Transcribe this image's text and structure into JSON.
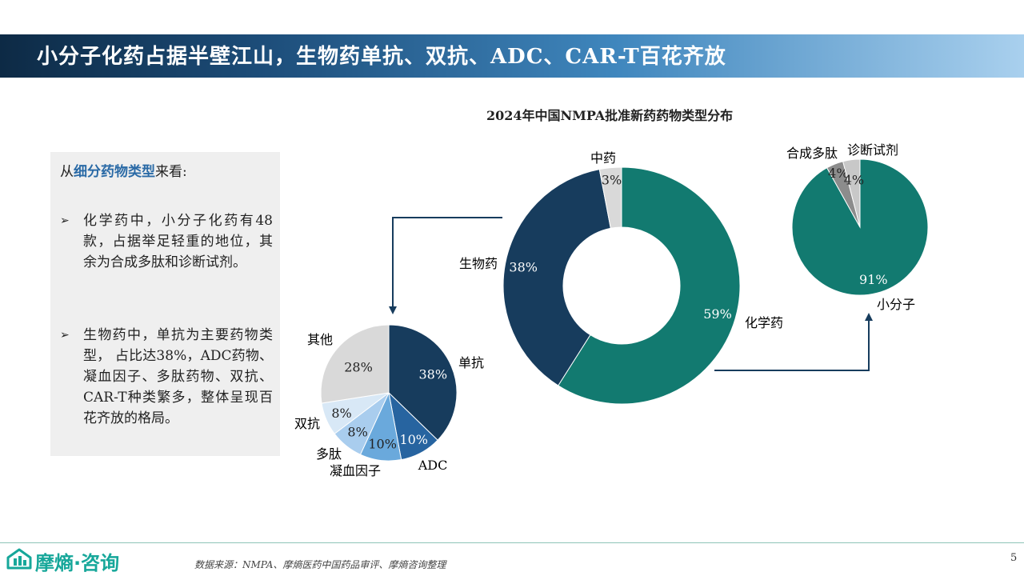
{
  "header": {
    "title": "小分子化药占据半壁江山，生物药单抗、双抗、ADC、CAR-T百花齐放"
  },
  "panel": {
    "intro_prefix": "从",
    "intro_highlight": "细分药物类型",
    "intro_suffix": "来看:",
    "bullets": [
      "化学药中，小分子化药有48款，占据举足轻重的地位，其余为合成多肽和诊断试剂。",
      "生物药中，单抗为主要药物类型， 占比达38%，ADC药物、凝血因子、多肽药物、双抗、CAR-T种类繁多，整体呈现百花齐放的格局。"
    ]
  },
  "colors": {
    "teal": "#127a70",
    "navy": "#173c5d",
    "gray": "#d9d9d9",
    "accent": "#2a6aa6"
  },
  "chart_data": [
    {
      "type": "pie",
      "subtype": "donut",
      "title": "2024年中国NMPA批准新药药物类型分布",
      "categories": [
        "化学药",
        "生物药",
        "中药"
      ],
      "values": [
        59,
        38,
        3
      ],
      "labels": [
        "59%",
        "38%",
        "3%"
      ],
      "colors": [
        "#127a70",
        "#173c5d",
        "#d9d9d9"
      ]
    },
    {
      "type": "pie",
      "categories": [
        "小分子",
        "合成多肽",
        "诊断试剂"
      ],
      "values": [
        91,
        4,
        4
      ],
      "labels": [
        "91%",
        "4%",
        "4%"
      ],
      "colors": [
        "#127a70",
        "#8c8c8c",
        "#c8c8c8"
      ]
    },
    {
      "type": "pie",
      "categories": [
        "单抗",
        "ADC",
        "凝血因子",
        "多肽",
        "双抗",
        "其他"
      ],
      "values": [
        38,
        10,
        10,
        8,
        8,
        28
      ],
      "labels": [
        "38%",
        "10%",
        "10%",
        "8%",
        "8%",
        "28%"
      ],
      "colors": [
        "#173c5d",
        "#2764a0",
        "#6aa9dc",
        "#a9cdee",
        "#d8e8f6",
        "#d9d9d9"
      ]
    }
  ],
  "footer": {
    "logo_text": "摩熵·咨询",
    "source": "数据来源：NMPA、摩熵医药中国药品审评、摩熵咨询整理",
    "page": "5"
  }
}
